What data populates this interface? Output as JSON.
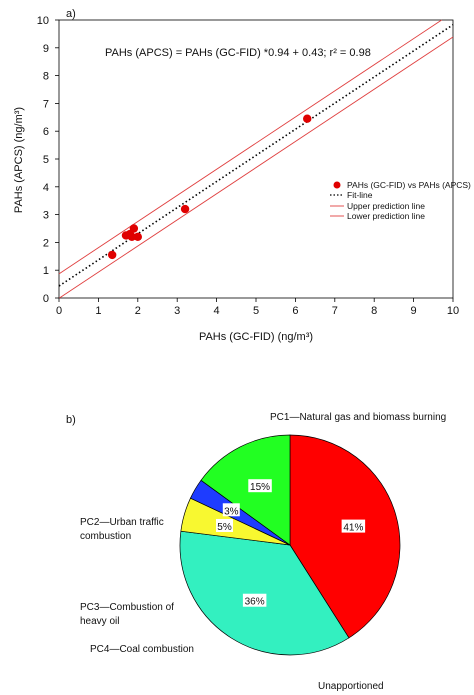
{
  "chart_data": [
    {
      "type": "scatter",
      "panel_label": "a)",
      "equation_text": "PAHs (APCS) = PAHs (GC-FID) *0.94 + 0.43; r² = 0.98",
      "xlabel": "PAHs (GC-FID) (ng/m³)",
      "ylabel": "PAHs (APCS) (ng/m³)",
      "xlim": [
        0,
        10
      ],
      "ylim": [
        0,
        10
      ],
      "x_ticks": [
        "0",
        "1",
        "2",
        "3",
        "4",
        "5",
        "6",
        "7",
        "8",
        "9",
        "10"
      ],
      "y_ticks": [
        "0",
        "1",
        "2",
        "3",
        "4",
        "5",
        "6",
        "7",
        "8",
        "9",
        "10"
      ],
      "grid": false,
      "legend_position": "right",
      "series": [
        {
          "name": "PAHs (GC-FID) vs PAHs (APCS)",
          "kind": "points",
          "color": "#e00000",
          "points": [
            {
              "x": 1.35,
              "y": 1.55
            },
            {
              "x": 1.7,
              "y": 2.25
            },
            {
              "x": 1.8,
              "y": 2.3
            },
            {
              "x": 1.85,
              "y": 2.2
            },
            {
              "x": 1.9,
              "y": 2.5
            },
            {
              "x": 2.0,
              "y": 2.2
            },
            {
              "x": 3.2,
              "y": 3.2
            },
            {
              "x": 6.3,
              "y": 6.45
            }
          ]
        },
        {
          "name": "Fit-line",
          "kind": "line",
          "style": "dotted",
          "color": "#000000",
          "slope": 0.94,
          "intercept": 0.43
        },
        {
          "name": "Upper prediction line",
          "kind": "line",
          "color": "#e04040",
          "slope": 0.94,
          "intercept": 0.87
        },
        {
          "name": "Lower prediction line",
          "kind": "line",
          "color": "#e04040",
          "slope": 0.94,
          "intercept": -0.01
        }
      ]
    },
    {
      "type": "pie",
      "panel_label": "b)",
      "slices": [
        {
          "label": "PC1—Natural gas and biomass burning",
          "value": 41,
          "pct_text": "41%",
          "color": "#ff0000"
        },
        {
          "label": "Unapportioned",
          "value": 36,
          "pct_text": "36%",
          "color": "#33f0c0"
        },
        {
          "label": "PC4—Coal combustion",
          "value": 5,
          "pct_text": "5%",
          "color": "#f8f830"
        },
        {
          "label": "PC3—Combustion of heavy oil",
          "value": 3,
          "pct_text": "3%",
          "color": "#1e3cff"
        },
        {
          "label": "PC2—Urban traffic combustion",
          "value": 15,
          "pct_text": "15%",
          "color": "#22ff22"
        }
      ]
    }
  ]
}
